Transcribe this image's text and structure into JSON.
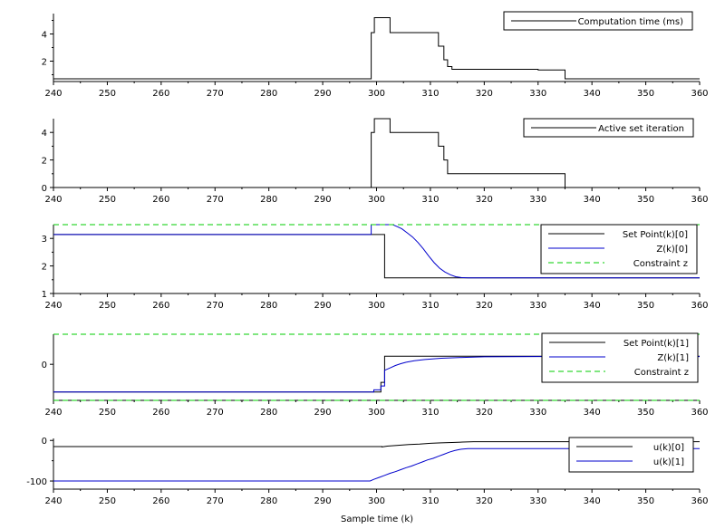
{
  "chart_data": [
    {
      "type": "line",
      "xlim": [
        240,
        360
      ],
      "ylim": [
        0.5,
        5.5
      ],
      "yticks": [
        2,
        4
      ],
      "xticks": [
        240,
        250,
        260,
        270,
        280,
        290,
        300,
        310,
        320,
        330,
        340,
        350,
        360
      ],
      "legend_position": "top-right",
      "series": [
        {
          "name": "Computation time (ms)",
          "color": "#000000",
          "style": "step",
          "points": [
            [
              240,
              0.7
            ],
            [
              299,
              0.7
            ],
            [
              299,
              4.1
            ],
            [
              299.6,
              4.1
            ],
            [
              299.6,
              5.2
            ],
            [
              302.5,
              5.2
            ],
            [
              302.5,
              4.1
            ],
            [
              311.5,
              4.1
            ],
            [
              311.5,
              3.1
            ],
            [
              312.5,
              3.1
            ],
            [
              312.5,
              2.1
            ],
            [
              313.2,
              2.1
            ],
            [
              313.2,
              1.6
            ],
            [
              314,
              1.6
            ],
            [
              314,
              1.4
            ],
            [
              330,
              1.4
            ],
            [
              330,
              1.35
            ],
            [
              335,
              1.35
            ],
            [
              335,
              0.7
            ],
            [
              360,
              0.7
            ]
          ]
        }
      ]
    },
    {
      "type": "line",
      "xlim": [
        240,
        360
      ],
      "ylim": [
        0,
        5
      ],
      "yticks": [
        0,
        2,
        4
      ],
      "xticks": [
        240,
        250,
        260,
        270,
        280,
        290,
        300,
        310,
        320,
        330,
        340,
        350,
        360
      ],
      "legend_position": "top-right",
      "series": [
        {
          "name": "Active set iteration",
          "color": "#000000",
          "style": "step",
          "points": [
            [
              299,
              0
            ],
            [
              299,
              4
            ],
            [
              299.6,
              4
            ],
            [
              299.6,
              5
            ],
            [
              302.5,
              5
            ],
            [
              302.5,
              4
            ],
            [
              311.5,
              4
            ],
            [
              311.5,
              3
            ],
            [
              312.5,
              3
            ],
            [
              312.5,
              2
            ],
            [
              313.2,
              2
            ],
            [
              313.2,
              1
            ],
            [
              335,
              1
            ],
            [
              335,
              0
            ]
          ]
        }
      ]
    },
    {
      "type": "line",
      "xlim": [
        240,
        360
      ],
      "ylim": [
        1,
        3.5
      ],
      "yticks": [
        1,
        2,
        3
      ],
      "xticks": [
        240,
        250,
        260,
        270,
        280,
        290,
        300,
        310,
        320,
        330,
        340,
        350,
        360
      ],
      "legend_position": "top-right",
      "series": [
        {
          "name": "Set Point(k)[0]",
          "color": "#000000",
          "style": "step",
          "points": [
            [
              240,
              3.14
            ],
            [
              301.5,
              3.14
            ],
            [
              301.5,
              1.57
            ],
            [
              360,
              1.57
            ]
          ]
        },
        {
          "name": "Z(k)[0]",
          "color": "#0000cc",
          "style": "step",
          "points": [
            [
              240,
              3.14
            ],
            [
              299,
              3.14
            ],
            [
              299,
              3.5
            ],
            [
              303,
              3.5
            ],
            [
              303.7,
              3.44
            ],
            [
              304.7,
              3.35
            ],
            [
              305.7,
              3.2
            ],
            [
              306.7,
              3.05
            ],
            [
              307.7,
              2.85
            ],
            [
              308.7,
              2.62
            ],
            [
              309.7,
              2.36
            ],
            [
              310.7,
              2.12
            ],
            [
              311.7,
              1.92
            ],
            [
              312.7,
              1.78
            ],
            [
              313.7,
              1.68
            ],
            [
              314.7,
              1.61
            ],
            [
              315.7,
              1.58
            ],
            [
              317,
              1.57
            ],
            [
              360,
              1.57
            ]
          ]
        },
        {
          "name": "Constraint z",
          "color": "#00cc00",
          "style": "dashed",
          "points": [
            [
              240,
              3.5
            ],
            [
              360,
              3.5
            ]
          ]
        }
      ]
    },
    {
      "type": "line",
      "xlim": [
        240,
        360
      ],
      "ylim": [
        -1.2,
        1.0
      ],
      "yticks": [
        0
      ],
      "xticks": [
        240,
        250,
        260,
        270,
        280,
        290,
        300,
        310,
        320,
        330,
        340,
        350,
        360
      ],
      "legend_position": "top-right",
      "series": [
        {
          "name": "Set Point(k)[1]",
          "color": "#000000",
          "style": "step",
          "points": [
            [
              240,
              -0.92
            ],
            [
              300.8,
              -0.92
            ],
            [
              300.8,
              -0.6
            ],
            [
              301.5,
              -0.6
            ],
            [
              301.5,
              0.27
            ],
            [
              360,
              0.27
            ]
          ]
        },
        {
          "name": "Z(k)[1]",
          "color": "#0000cc",
          "style": "step",
          "points": [
            [
              240,
              -0.92
            ],
            [
              299.5,
              -0.92
            ],
            [
              299.5,
              -0.85
            ],
            [
              300.8,
              -0.85
            ],
            [
              300.8,
              -0.72
            ],
            [
              301.5,
              -0.72
            ],
            [
              301.5,
              -0.2
            ],
            [
              302.5,
              -0.12
            ],
            [
              303.5,
              -0.04
            ],
            [
              304.5,
              0.02
            ],
            [
              305.5,
              0.07
            ],
            [
              307,
              0.12
            ],
            [
              309,
              0.16
            ],
            [
              312,
              0.2
            ],
            [
              316,
              0.23
            ],
            [
              320,
              0.25
            ],
            [
              330,
              0.26
            ],
            [
              360,
              0.26
            ]
          ]
        },
        {
          "name": "Constraint z",
          "color": "#00cc00",
          "style": "dashed",
          "points": [
            [
              240,
              1.0
            ],
            [
              360,
              1.0
            ]
          ]
        },
        {
          "name": "",
          "color": "#00cc00",
          "style": "dashed",
          "points": [
            [
              240,
              -1.2
            ],
            [
              360,
              -1.2
            ]
          ]
        }
      ]
    },
    {
      "type": "line",
      "xlim": [
        240,
        360
      ],
      "xlabel": "Sample time (k)",
      "ylim": [
        -120,
        5
      ],
      "yticks": [
        -100,
        0
      ],
      "xticks": [
        240,
        250,
        260,
        270,
        280,
        290,
        300,
        310,
        320,
        330,
        340,
        350,
        360
      ],
      "legend_position": "top-right",
      "series": [
        {
          "name": "u(k)[0]",
          "color": "#000000",
          "style": "step",
          "points": [
            [
              240,
              -15
            ],
            [
              301,
              -15
            ],
            [
              301,
              -16
            ],
            [
              302,
              -14
            ],
            [
              304,
              -12
            ],
            [
              306,
              -10
            ],
            [
              308,
              -9
            ],
            [
              310,
              -7
            ],
            [
              312,
              -6
            ],
            [
              314,
              -5
            ],
            [
              316,
              -4
            ],
            [
              318,
              -3
            ],
            [
              360,
              -3
            ]
          ]
        },
        {
          "name": "u(k)[1]",
          "color": "#0000cc",
          "style": "step",
          "points": [
            [
              240,
              -100
            ],
            [
              298.8,
              -100
            ],
            [
              299.5,
              -96
            ],
            [
              300.5,
              -91
            ],
            [
              301.5,
              -86
            ],
            [
              302.5,
              -81
            ],
            [
              303.5,
              -77
            ],
            [
              304.5,
              -72
            ],
            [
              305.5,
              -67
            ],
            [
              306.5,
              -63
            ],
            [
              307.5,
              -58
            ],
            [
              308.5,
              -53
            ],
            [
              309.5,
              -48
            ],
            [
              310.5,
              -44
            ],
            [
              311.5,
              -39
            ],
            [
              312.5,
              -34
            ],
            [
              313.5,
              -29
            ],
            [
              314.5,
              -25
            ],
            [
              315.5,
              -22
            ],
            [
              317,
              -20
            ],
            [
              360,
              -20
            ]
          ]
        }
      ]
    }
  ]
}
